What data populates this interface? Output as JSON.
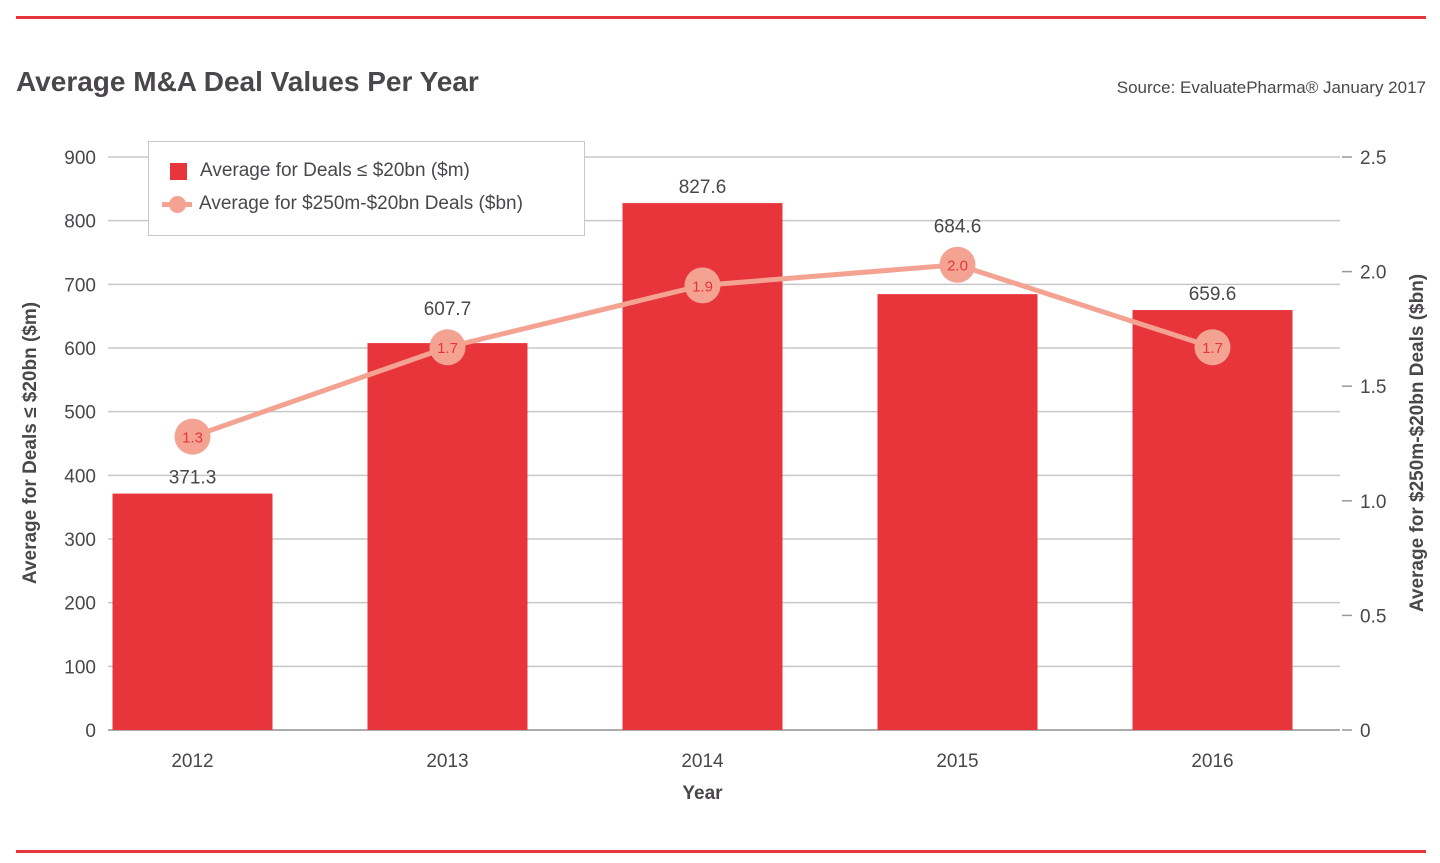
{
  "chart_data": {
    "type": "bar+line",
    "title": "Average M&A Deal Values Per Year",
    "source": "Source: EvaluatePharma® January 2017",
    "categories": [
      "2012",
      "2013",
      "2014",
      "2015",
      "2016"
    ],
    "xlabel": "Year",
    "ylabel_left": "Average for Deals ≤ $20bn ($m)",
    "ylabel_right": "Average for $250m-$20bn Deals ($bn)",
    "ylim_left": [
      0,
      900
    ],
    "yticks_left": [
      "0",
      "100",
      "200",
      "300",
      "400",
      "500",
      "600",
      "700",
      "800",
      "900"
    ],
    "ylim_right": [
      0,
      2.5
    ],
    "yticks_right": [
      "0",
      "0.5",
      "1.0",
      "1.5",
      "2.0",
      "2.5"
    ],
    "grid": true,
    "legend_placement": "top-left",
    "series": [
      {
        "name": "Average for Deals ≤ $20bn ($m)",
        "type": "bar",
        "axis": "left",
        "color": "#e8343b",
        "values": [
          371.3,
          607.7,
          827.6,
          684.6,
          659.6
        ],
        "labels": [
          "371.3",
          "607.7",
          "827.6",
          "684.6",
          "659.6"
        ]
      },
      {
        "name": "Average for $250m-$20bn Deals ($bn)",
        "type": "line",
        "axis": "right",
        "color": "#f4a393",
        "values": [
          1.28,
          1.67,
          1.94,
          2.03,
          1.67
        ],
        "labels": [
          "1.3",
          "1.7",
          "1.9",
          "2.0",
          "1.7"
        ]
      }
    ]
  }
}
